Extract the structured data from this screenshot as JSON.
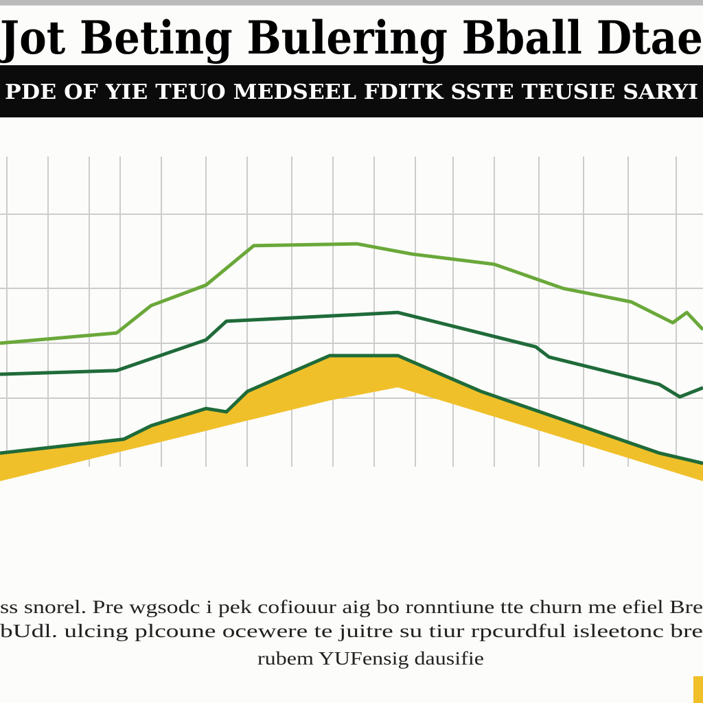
{
  "chart_data": {
    "type": "line",
    "title": "Jot Beting Bulering Bball Dtae",
    "subtitle": "PDE OF YIE TEUO MEDSEEL FDITK SSTE TEUSIE SARYI",
    "caption": [
      "ss snorel. Pre wgsodc i pek cofiouur aig bo ronntiune tte churn me efiel Bre",
      "bUdl. ulcing plcoune ocewere te juitre su tiur rpcurdful isleetonc bre",
      "rubem YUFensig dausifie"
    ],
    "xlim": [
      0,
      10
    ],
    "ylim": [
      0,
      100
    ],
    "grid": true,
    "series": [
      {
        "color": "#6aa83a",
        "x": [
          0,
          1.66,
          2.15,
          2.93,
          3.61,
          5.08,
          5.86,
          7.03,
          8.01,
          8.98,
          9.57,
          9.77,
          10
        ],
        "values": [
          48.9,
          51.7,
          59.2,
          64.8,
          75.6,
          76.1,
          73.3,
          70.5,
          63.9,
          60.2,
          54.5,
          57.3,
          52.6
        ]
      },
      {
        "color": "#1f6b3a",
        "x": [
          0,
          1.66,
          2.93,
          3.22,
          5.66,
          7.62,
          7.81,
          9.38,
          9.67,
          10
        ],
        "values": [
          40.4,
          41.4,
          49.8,
          54.9,
          57.3,
          47.9,
          45.1,
          37.6,
          34.2,
          36.7
        ]
      },
      {
        "color": "#f0c02a",
        "edge_color": "#1f6b3a",
        "x": [
          0,
          1.76,
          2.15,
          2.93,
          3.22,
          3.52,
          4.69,
          5.66,
          6.84,
          9.38,
          10
        ],
        "values": [
          18.8,
          22.6,
          26.3,
          31.0,
          30.1,
          35.7,
          45.5,
          45.5,
          35.7,
          18.8,
          16.0
        ],
        "values_low": [
          11.3,
          19.6,
          21.4,
          25.1,
          26.5,
          27.9,
          33.4,
          37.0,
          30.1,
          15.0,
          11.3
        ]
      }
    ]
  }
}
